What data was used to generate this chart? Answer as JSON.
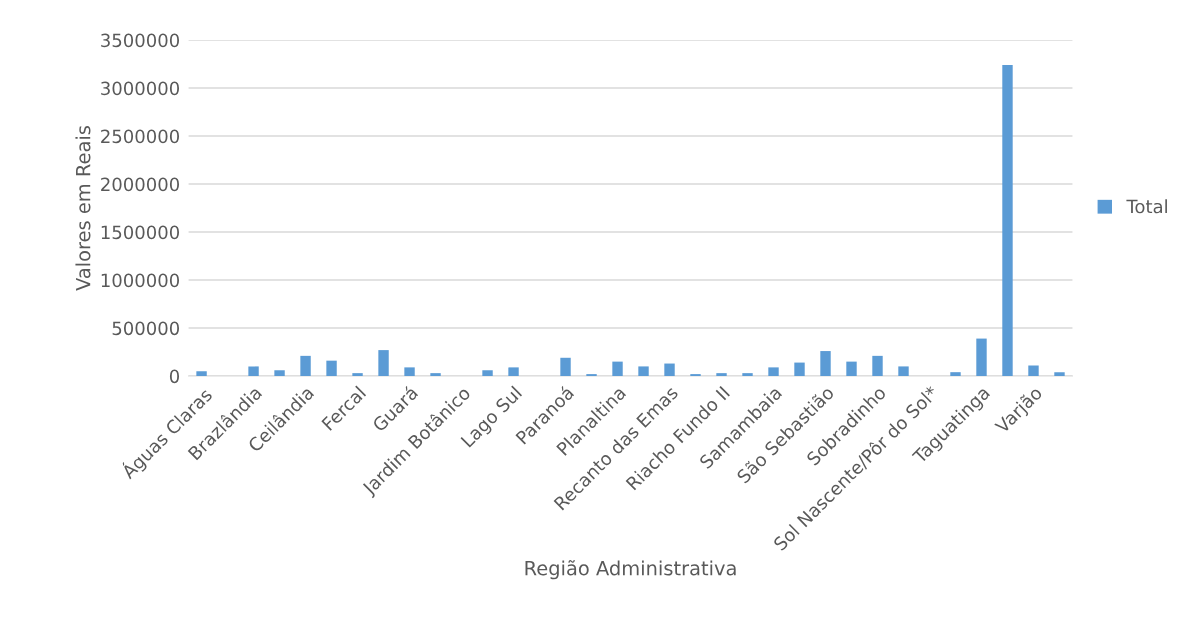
{
  "chart_data": {
    "type": "bar",
    "xlabel": "Região Administrativa",
    "ylabel": "Valores em Reais",
    "categories": [
      "Águas Claras",
      null,
      "Brazlândia",
      null,
      "Ceilândia",
      null,
      "Fercal",
      null,
      "Guará",
      null,
      "Jardim Botânico",
      null,
      "Lago Sul",
      null,
      "Paranoá",
      null,
      "Planaltina",
      null,
      "Recanto das Emas",
      null,
      "Riacho Fundo II",
      null,
      "Samambaia",
      null,
      "São Sebastião",
      null,
      "Sobradinho",
      null,
      "Sol Nascente/Pôr do Sol*",
      null,
      "Taguatinga",
      null,
      "Varjão",
      null
    ],
    "series": [
      {
        "name": "Total",
        "color": "#5b9bd5",
        "values": [
          50000,
          null,
          100000,
          60000,
          210000,
          160000,
          30000,
          270000,
          90000,
          30000,
          null,
          60000,
          90000,
          null,
          190000,
          20000,
          150000,
          100000,
          130000,
          20000,
          30000,
          30000,
          90000,
          140000,
          260000,
          150000,
          210000,
          100000,
          null,
          40000,
          390000,
          3240000,
          110000,
          40000
        ]
      }
    ],
    "ylim": [
      0,
      3500000
    ],
    "yticks": [
      0,
      500000,
      1000000,
      1500000,
      2000000,
      2500000,
      3000000,
      3500000
    ],
    "grid": "y",
    "legend": "right"
  }
}
